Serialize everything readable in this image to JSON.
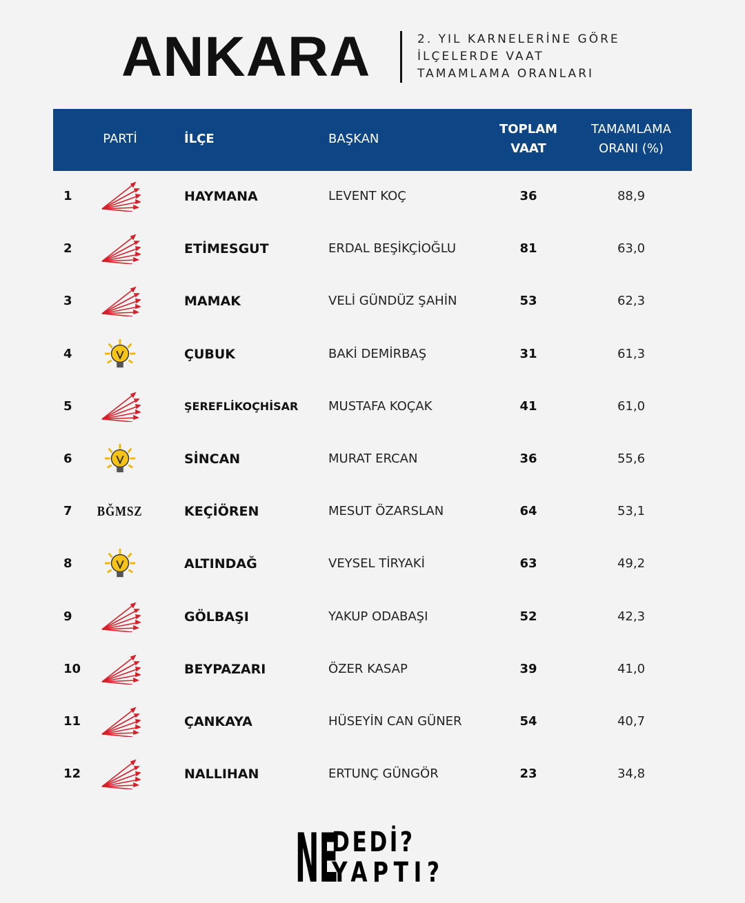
{
  "header": {
    "title": "ANKARA",
    "subtitle": [
      "2. YIL KARNELERİNE GÖRE",
      "İLÇELERDE VAAT",
      "TAMAMLAMA ORANLARI"
    ]
  },
  "table": {
    "columns": {
      "party": "PARTİ",
      "district": "İLÇE",
      "mayor": "BAŞKAN",
      "promises": [
        "TOPLAM",
        "VAAT"
      ],
      "rate": [
        "TAMAMLAMA",
        "ORANI (%)"
      ]
    },
    "rows": [
      {
        "rank": 1,
        "district": "HAYMANA",
        "mayor": "LEVENT KOÇ",
        "promises": 36,
        "rate": "88,9"
      },
      {
        "rank": 2,
        "district": "ETİMESGUT",
        "mayor": "ERDAL BEŞİKÇİOĞLU",
        "promises": 81,
        "rate": "63,0"
      },
      {
        "rank": 3,
        "district": "MAMAK",
        "mayor": "VELİ GÜNDÜZ ŞAHİN",
        "promises": 53,
        "rate": "62,3"
      },
      {
        "rank": 4,
        "district": "ÇUBUK",
        "mayor": "BAKİ DEMİRBAŞ",
        "promises": 31,
        "rate": "61,3"
      },
      {
        "rank": 5,
        "district": "ŞEREFLİKOÇHİSAR",
        "mayor": "MUSTAFA KOÇAK",
        "promises": 41,
        "rate": "61,0"
      },
      {
        "rank": 6,
        "district": "SİNCAN",
        "mayor": "MURAT ERCAN",
        "promises": 36,
        "rate": "55,6"
      },
      {
        "rank": 7,
        "party": "BĞMSZ",
        "district": "KEÇİÖREN",
        "mayor": "MESUT ÖZARSLAN",
        "promises": 64,
        "rate": "53,1"
      },
      {
        "rank": 8,
        "district": "ALTINDAĞ",
        "mayor": "VEYSEL TİRYAKİ",
        "promises": 63,
        "rate": "49,2"
      },
      {
        "rank": 9,
        "district": "GÖLBAŞI",
        "mayor": "YAKUP ODABAŞI",
        "promises": 52,
        "rate": "42,3"
      },
      {
        "rank": 10,
        "district": "BEYPAZARI",
        "mayor": "ÖZER KASAP",
        "promises": 39,
        "rate": "41,0"
      },
      {
        "rank": 11,
        "district": "ÇANKAYA",
        "mayor": "HÜSEYİN CAN GÜNER",
        "promises": 54,
        "rate": "40,7"
      },
      {
        "rank": 12,
        "district": "NALLIHAN",
        "mayor": "ERTUNÇ GÜNGÖR",
        "promises": 23,
        "rate": "34,8"
      }
    ]
  },
  "logo": {
    "ne": "NE",
    "top": "DEDİ?",
    "bottom": "YAPTI?"
  }
}
